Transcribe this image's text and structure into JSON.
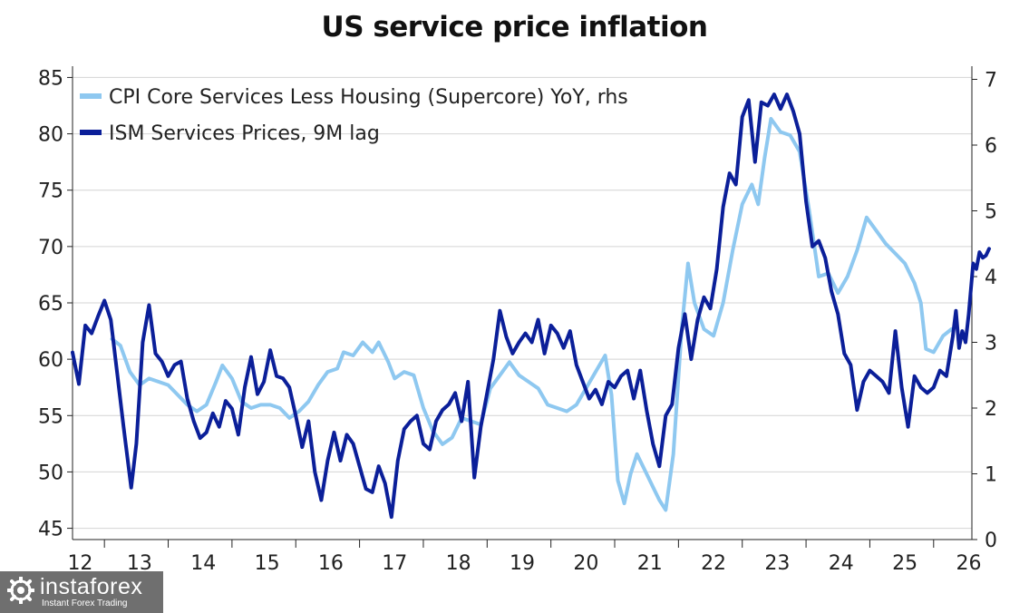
{
  "chart_data": {
    "type": "line",
    "title": "US service price inflation",
    "x_axis": {
      "label": "",
      "ticks": [
        "12",
        "13",
        "14",
        "15",
        "16",
        "17",
        "18",
        "19",
        "20",
        "21",
        "22",
        "23",
        "24",
        "25",
        "26"
      ],
      "range": [
        2012.0,
        2026.1
      ]
    },
    "y_left": {
      "label": "",
      "range": [
        44,
        86
      ],
      "ticks": [
        45,
        50,
        55,
        60,
        65,
        70,
        75,
        80,
        85
      ]
    },
    "y_right": {
      "label": "",
      "range": [
        0,
        7.2
      ],
      "ticks": [
        0,
        1,
        2,
        3,
        4,
        5,
        6,
        7
      ]
    },
    "grid": "horizontal",
    "legend_position": "top-left",
    "series": [
      {
        "name": "CPI Core Services Less Housing (Supercore) YoY, rhs",
        "axis": "right",
        "color": "#8ec8f0",
        "points": [
          [
            2012.62,
            3.05
          ],
          [
            2012.75,
            2.95
          ],
          [
            2012.9,
            2.55
          ],
          [
            2013.05,
            2.35
          ],
          [
            2013.2,
            2.45
          ],
          [
            2013.35,
            2.4
          ],
          [
            2013.5,
            2.35
          ],
          [
            2013.65,
            2.2
          ],
          [
            2013.8,
            2.05
          ],
          [
            2013.95,
            1.95
          ],
          [
            2014.1,
            2.05
          ],
          [
            2014.25,
            2.4
          ],
          [
            2014.35,
            2.65
          ],
          [
            2014.5,
            2.45
          ],
          [
            2014.65,
            2.1
          ],
          [
            2014.8,
            2.0
          ],
          [
            2014.95,
            2.05
          ],
          [
            2015.1,
            2.05
          ],
          [
            2015.25,
            2.0
          ],
          [
            2015.4,
            1.85
          ],
          [
            2015.55,
            1.95
          ],
          [
            2015.7,
            2.1
          ],
          [
            2015.85,
            2.35
          ],
          [
            2016.0,
            2.55
          ],
          [
            2016.15,
            2.6
          ],
          [
            2016.25,
            2.85
          ],
          [
            2016.4,
            2.8
          ],
          [
            2016.55,
            3.0
          ],
          [
            2016.7,
            2.85
          ],
          [
            2016.8,
            3.0
          ],
          [
            2016.95,
            2.7
          ],
          [
            2017.05,
            2.45
          ],
          [
            2017.2,
            2.55
          ],
          [
            2017.35,
            2.5
          ],
          [
            2017.5,
            2.0
          ],
          [
            2017.65,
            1.65
          ],
          [
            2017.8,
            1.45
          ],
          [
            2017.95,
            1.55
          ],
          [
            2018.1,
            1.85
          ],
          [
            2018.25,
            1.8
          ],
          [
            2018.4,
            1.75
          ],
          [
            2018.55,
            2.3
          ],
          [
            2018.7,
            2.5
          ],
          [
            2018.85,
            2.7
          ],
          [
            2019.0,
            2.5
          ],
          [
            2019.15,
            2.4
          ],
          [
            2019.3,
            2.3
          ],
          [
            2019.45,
            2.05
          ],
          [
            2019.6,
            2.0
          ],
          [
            2019.75,
            1.95
          ],
          [
            2019.9,
            2.05
          ],
          [
            2020.05,
            2.3
          ],
          [
            2020.2,
            2.55
          ],
          [
            2020.35,
            2.8
          ],
          [
            2020.45,
            2.2
          ],
          [
            2020.55,
            0.9
          ],
          [
            2020.65,
            0.55
          ],
          [
            2020.75,
            1.0
          ],
          [
            2020.85,
            1.3
          ],
          [
            2021.0,
            1.0
          ],
          [
            2021.1,
            0.8
          ],
          [
            2021.2,
            0.6
          ],
          [
            2021.3,
            0.45
          ],
          [
            2021.42,
            1.3
          ],
          [
            2021.55,
            3.2
          ],
          [
            2021.65,
            4.2
          ],
          [
            2021.75,
            3.6
          ],
          [
            2021.9,
            3.2
          ],
          [
            2022.05,
            3.1
          ],
          [
            2022.2,
            3.6
          ],
          [
            2022.35,
            4.4
          ],
          [
            2022.5,
            5.1
          ],
          [
            2022.65,
            5.4
          ],
          [
            2022.75,
            5.1
          ],
          [
            2022.85,
            5.8
          ],
          [
            2022.95,
            6.4
          ],
          [
            2023.1,
            6.2
          ],
          [
            2023.25,
            6.15
          ],
          [
            2023.4,
            5.9
          ],
          [
            2023.55,
            5.0
          ],
          [
            2023.7,
            4.0
          ],
          [
            2023.85,
            4.05
          ],
          [
            2024.0,
            3.75
          ],
          [
            2024.15,
            4.0
          ],
          [
            2024.3,
            4.4
          ],
          [
            2024.45,
            4.9
          ],
          [
            2024.6,
            4.7
          ],
          [
            2024.75,
            4.5
          ],
          [
            2024.9,
            4.35
          ],
          [
            2025.05,
            4.2
          ],
          [
            2025.2,
            3.9
          ],
          [
            2025.3,
            3.6
          ],
          [
            2025.38,
            2.9
          ],
          [
            2025.5,
            2.85
          ],
          [
            2025.65,
            3.1
          ],
          [
            2025.78,
            3.2
          ]
        ]
      },
      {
        "name": "ISM Services Prices, 9M lag",
        "axis": "left",
        "color": "#0b1f99",
        "points": [
          [
            2012.0,
            60.6
          ],
          [
            2012.1,
            57.8
          ],
          [
            2012.2,
            63.0
          ],
          [
            2012.3,
            62.3
          ],
          [
            2012.4,
            63.8
          ],
          [
            2012.5,
            65.2
          ],
          [
            2012.6,
            63.5
          ],
          [
            2012.7,
            58.8
          ],
          [
            2012.8,
            54.0
          ],
          [
            2012.92,
            48.6
          ],
          [
            2013.0,
            52.5
          ],
          [
            2013.1,
            61.5
          ],
          [
            2013.2,
            64.8
          ],
          [
            2013.3,
            60.5
          ],
          [
            2013.4,
            59.8
          ],
          [
            2013.5,
            58.5
          ],
          [
            2013.6,
            59.5
          ],
          [
            2013.7,
            59.8
          ],
          [
            2013.8,
            56.5
          ],
          [
            2013.9,
            54.5
          ],
          [
            2014.0,
            53.0
          ],
          [
            2014.1,
            53.5
          ],
          [
            2014.2,
            55.2
          ],
          [
            2014.3,
            54.0
          ],
          [
            2014.4,
            56.3
          ],
          [
            2014.5,
            55.6
          ],
          [
            2014.6,
            53.3
          ],
          [
            2014.7,
            57.5
          ],
          [
            2014.8,
            60.2
          ],
          [
            2014.9,
            56.9
          ],
          [
            2015.0,
            58.0
          ],
          [
            2015.1,
            60.8
          ],
          [
            2015.2,
            58.5
          ],
          [
            2015.3,
            58.3
          ],
          [
            2015.4,
            57.5
          ],
          [
            2015.5,
            55.0
          ],
          [
            2015.6,
            52.2
          ],
          [
            2015.7,
            54.5
          ],
          [
            2015.8,
            50.0
          ],
          [
            2015.9,
            47.5
          ],
          [
            2016.0,
            51.0
          ],
          [
            2016.1,
            53.5
          ],
          [
            2016.2,
            51.0
          ],
          [
            2016.3,
            53.3
          ],
          [
            2016.4,
            52.5
          ],
          [
            2016.5,
            50.5
          ],
          [
            2016.6,
            48.5
          ],
          [
            2016.7,
            48.2
          ],
          [
            2016.8,
            50.5
          ],
          [
            2016.9,
            49.0
          ],
          [
            2017.0,
            46.0
          ],
          [
            2017.1,
            51.0
          ],
          [
            2017.2,
            53.8
          ],
          [
            2017.3,
            54.5
          ],
          [
            2017.4,
            55.0
          ],
          [
            2017.5,
            52.5
          ],
          [
            2017.6,
            52.0
          ],
          [
            2017.7,
            54.5
          ],
          [
            2017.8,
            55.5
          ],
          [
            2017.9,
            56.0
          ],
          [
            2018.0,
            57.0
          ],
          [
            2018.1,
            54.5
          ],
          [
            2018.2,
            58.0
          ],
          [
            2018.3,
            49.5
          ],
          [
            2018.4,
            54.0
          ],
          [
            2018.5,
            57.0
          ],
          [
            2018.6,
            60.0
          ],
          [
            2018.7,
            64.3
          ],
          [
            2018.8,
            62.0
          ],
          [
            2018.9,
            60.5
          ],
          [
            2019.0,
            61.5
          ],
          [
            2019.1,
            62.3
          ],
          [
            2019.2,
            61.5
          ],
          [
            2019.3,
            63.5
          ],
          [
            2019.4,
            60.5
          ],
          [
            2019.5,
            63.0
          ],
          [
            2019.6,
            62.3
          ],
          [
            2019.7,
            61.0
          ],
          [
            2019.8,
            62.5
          ],
          [
            2019.9,
            59.5
          ],
          [
            2020.0,
            58.0
          ],
          [
            2020.1,
            56.5
          ],
          [
            2020.2,
            57.3
          ],
          [
            2020.3,
            56.0
          ],
          [
            2020.4,
            58.0
          ],
          [
            2020.5,
            57.5
          ],
          [
            2020.6,
            58.5
          ],
          [
            2020.7,
            59.0
          ],
          [
            2020.8,
            56.5
          ],
          [
            2020.9,
            59.0
          ],
          [
            2021.0,
            55.5
          ],
          [
            2021.1,
            52.5
          ],
          [
            2021.2,
            50.5
          ],
          [
            2021.3,
            55.0
          ],
          [
            2021.4,
            56.0
          ],
          [
            2021.5,
            61.0
          ],
          [
            2021.6,
            64.0
          ],
          [
            2021.7,
            60.0
          ],
          [
            2021.8,
            63.5
          ],
          [
            2021.9,
            65.5
          ],
          [
            2022.0,
            64.5
          ],
          [
            2022.1,
            68.0
          ],
          [
            2022.2,
            73.5
          ],
          [
            2022.3,
            76.5
          ],
          [
            2022.4,
            75.5
          ],
          [
            2022.5,
            81.5
          ],
          [
            2022.6,
            83.0
          ],
          [
            2022.7,
            77.5
          ],
          [
            2022.8,
            82.8
          ],
          [
            2022.9,
            82.5
          ],
          [
            2023.0,
            83.5
          ],
          [
            2023.1,
            82.2
          ],
          [
            2023.2,
            83.5
          ],
          [
            2023.3,
            82.0
          ],
          [
            2023.4,
            80.0
          ],
          [
            2023.5,
            74.0
          ],
          [
            2023.6,
            70.0
          ],
          [
            2023.7,
            70.5
          ],
          [
            2023.8,
            69.0
          ],
          [
            2023.9,
            66.0
          ],
          [
            2024.0,
            64.0
          ],
          [
            2024.1,
            60.5
          ],
          [
            2024.2,
            59.5
          ],
          [
            2024.3,
            55.5
          ],
          [
            2024.4,
            58.0
          ],
          [
            2024.5,
            59.0
          ],
          [
            2024.6,
            58.5
          ],
          [
            2024.7,
            58.0
          ],
          [
            2024.8,
            57.0
          ],
          [
            2024.9,
            62.5
          ],
          [
            2025.0,
            57.5
          ],
          [
            2025.1,
            54.0
          ],
          [
            2025.2,
            58.5
          ],
          [
            2025.3,
            57.5
          ],
          [
            2025.4,
            57.0
          ],
          [
            2025.5,
            57.5
          ],
          [
            2025.6,
            59.0
          ],
          [
            2025.7,
            58.5
          ],
          [
            2025.8,
            62.0
          ],
          [
            2025.85,
            64.3
          ],
          [
            2025.9,
            61.0
          ],
          [
            2025.95,
            62.5
          ],
          [
            2026.0,
            61.5
          ],
          [
            2026.05,
            64.0
          ],
          [
            2026.12,
            68.5
          ],
          [
            2026.17,
            68.0
          ],
          [
            2026.22,
            69.5
          ],
          [
            2026.27,
            69.0
          ],
          [
            2026.32,
            69.2
          ],
          [
            2026.37,
            69.8
          ]
        ]
      }
    ]
  },
  "watermark": {
    "brand": "instaforex",
    "tagline": "Instant Forex Trading"
  }
}
